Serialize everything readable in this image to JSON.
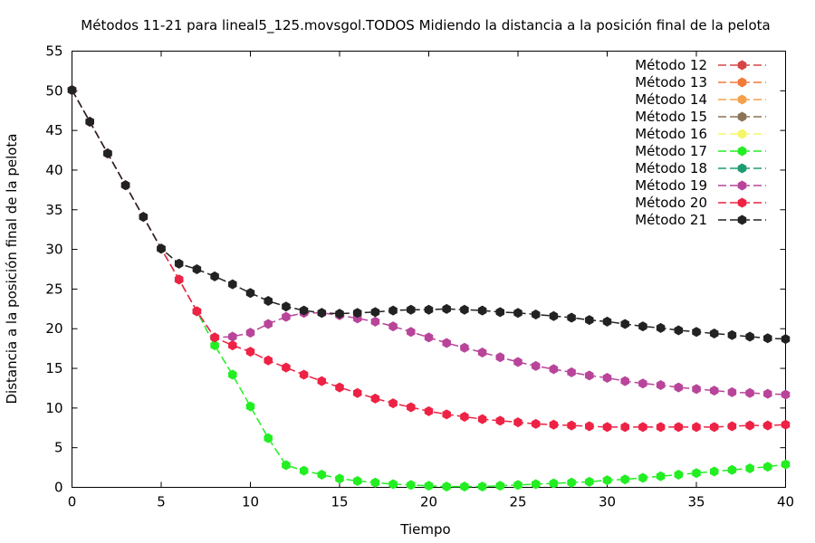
{
  "chart_data": {
    "type": "line",
    "title": "Métodos 11-21 para lineal5_125.movsgol.TODOS Midiendo la distancia a la posición final de la pelota",
    "xlabel": "Tiempo",
    "ylabel": "Distancia a la posición final de la pelota",
    "xlim": [
      0,
      40
    ],
    "ylim": [
      0,
      55
    ],
    "xticks": [
      0,
      5,
      10,
      15,
      20,
      25,
      30,
      35,
      40
    ],
    "yticks": [
      0,
      5,
      10,
      15,
      20,
      25,
      30,
      35,
      40,
      45,
      50,
      55
    ],
    "grid": false,
    "legend_position": "top-right",
    "x": [
      0,
      1,
      2,
      3,
      4,
      5,
      6,
      7,
      8,
      9,
      10,
      11,
      12,
      13,
      14,
      15,
      16,
      17,
      18,
      19,
      20,
      21,
      22,
      23,
      24,
      25,
      26,
      27,
      28,
      29,
      30,
      31,
      32,
      33,
      34,
      35,
      36,
      37,
      38,
      39,
      40
    ],
    "series": [
      {
        "name": "Método 12",
        "color": "#d64545",
        "values": null
      },
      {
        "name": "Método 13",
        "color": "#f27a3a",
        "values": null
      },
      {
        "name": "Método 14",
        "color": "#f5a04a",
        "values": null
      },
      {
        "name": "Método 15",
        "color": "#8b7355",
        "values": null
      },
      {
        "name": "Método 16",
        "color": "#f5f56a",
        "values": null
      },
      {
        "name": "Método 17",
        "color": "#22ee22",
        "values": [
          50.1,
          46.1,
          42.1,
          38.1,
          34.1,
          30.1,
          26.2,
          22.2,
          17.9,
          14.2,
          10.2,
          6.2,
          2.8,
          2.1,
          1.6,
          1.1,
          0.8,
          0.6,
          0.4,
          0.3,
          0.2,
          0.1,
          0.1,
          0.1,
          0.2,
          0.3,
          0.4,
          0.5,
          0.6,
          0.7,
          0.9,
          1.0,
          1.2,
          1.4,
          1.6,
          1.8,
          2.0,
          2.2,
          2.4,
          2.6,
          2.9
        ]
      },
      {
        "name": "Método 18",
        "color": "#1f9b74",
        "values": null
      },
      {
        "name": "Método 19",
        "color": "#b8459a",
        "values": [
          50.1,
          46.1,
          42.1,
          38.1,
          34.1,
          30.1,
          26.2,
          22.2,
          18.9,
          19.0,
          19.5,
          20.6,
          21.5,
          22.0,
          22.0,
          21.7,
          21.3,
          20.9,
          20.3,
          19.6,
          18.9,
          18.2,
          17.6,
          17.0,
          16.4,
          15.8,
          15.3,
          14.9,
          14.5,
          14.1,
          13.8,
          13.4,
          13.1,
          12.9,
          12.6,
          12.4,
          12.2,
          12.0,
          11.9,
          11.8,
          11.7
        ]
      },
      {
        "name": "Método 20",
        "color": "#ee2244",
        "values": [
          50.1,
          46.1,
          42.1,
          38.1,
          34.1,
          30.1,
          26.2,
          22.2,
          18.9,
          17.9,
          17.1,
          16.0,
          15.1,
          14.2,
          13.4,
          12.6,
          11.9,
          11.2,
          10.6,
          10.1,
          9.6,
          9.2,
          8.9,
          8.6,
          8.4,
          8.2,
          8.0,
          7.9,
          7.8,
          7.7,
          7.6,
          7.6,
          7.6,
          7.6,
          7.6,
          7.6,
          7.6,
          7.7,
          7.8,
          7.8,
          7.9
        ]
      },
      {
        "name": "Método 21",
        "color": "#222222",
        "values": [
          50.1,
          46.1,
          42.1,
          38.1,
          34.1,
          30.1,
          28.2,
          27.5,
          26.6,
          25.6,
          24.5,
          23.5,
          22.8,
          22.3,
          22.0,
          21.9,
          22.0,
          22.1,
          22.3,
          22.4,
          22.4,
          22.5,
          22.4,
          22.3,
          22.1,
          22.0,
          21.8,
          21.6,
          21.4,
          21.1,
          20.9,
          20.6,
          20.3,
          20.1,
          19.8,
          19.6,
          19.4,
          19.2,
          19.0,
          18.8,
          18.7
        ]
      }
    ]
  }
}
